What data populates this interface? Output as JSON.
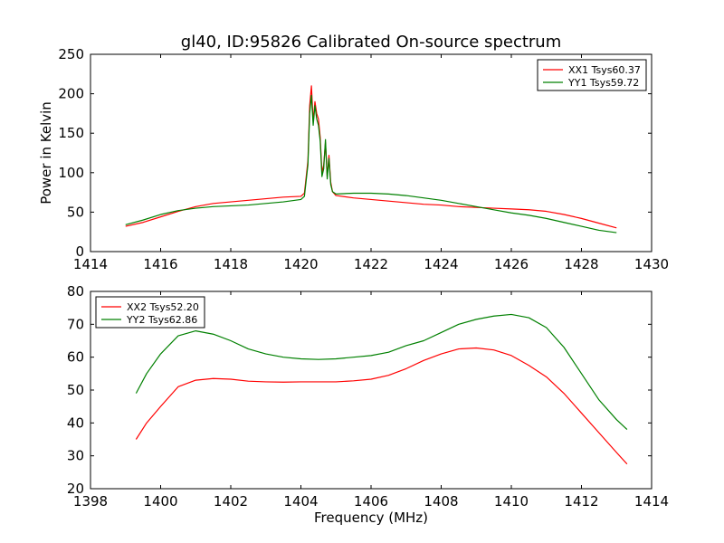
{
  "chart_data": [
    {
      "type": "line",
      "title": "gl40, ID:95826 Calibrated On-source spectrum",
      "xlabel": "",
      "ylabel": "Power in Kelvin",
      "xlim": [
        1414,
        1430
      ],
      "ylim": [
        0,
        250
      ],
      "xticks": [
        1414,
        1416,
        1418,
        1420,
        1422,
        1424,
        1426,
        1428,
        1430
      ],
      "yticks": [
        0,
        50,
        100,
        150,
        200,
        250
      ],
      "grid": false,
      "legend": "top-right",
      "series": [
        {
          "name": "XX1 Tsys60.37",
          "color": "#ff0000",
          "x": [
            1415.0,
            1415.5,
            1416.0,
            1416.5,
            1417.0,
            1417.5,
            1418.0,
            1418.5,
            1419.0,
            1419.5,
            1420.0,
            1420.1,
            1420.2,
            1420.25,
            1420.3,
            1420.35,
            1420.4,
            1420.45,
            1420.5,
            1420.55,
            1420.6,
            1420.65,
            1420.7,
            1420.75,
            1420.8,
            1420.85,
            1420.9,
            1421.0,
            1421.5,
            1422.0,
            1422.5,
            1423.0,
            1423.5,
            1424.0,
            1424.5,
            1425.0,
            1425.5,
            1426.0,
            1426.5,
            1427.0,
            1427.5,
            1428.0,
            1428.5,
            1429.0
          ],
          "y": [
            32,
            37,
            44,
            51,
            57,
            61,
            63,
            65,
            67,
            69,
            70,
            74,
            115,
            185,
            210,
            165,
            190,
            175,
            168,
            145,
            100,
            110,
            138,
            95,
            122,
            88,
            76,
            71,
            68,
            66,
            64,
            62,
            60,
            59,
            57,
            56,
            55,
            54,
            53,
            51,
            47,
            42,
            36,
            30
          ]
        },
        {
          "name": "YY1 Tsys59.72",
          "color": "#008000",
          "x": [
            1415.0,
            1415.5,
            1416.0,
            1416.5,
            1417.0,
            1417.5,
            1418.0,
            1418.5,
            1419.0,
            1419.5,
            1420.0,
            1420.1,
            1420.2,
            1420.25,
            1420.3,
            1420.35,
            1420.4,
            1420.45,
            1420.5,
            1420.55,
            1420.6,
            1420.65,
            1420.7,
            1420.75,
            1420.8,
            1420.85,
            1420.9,
            1421.0,
            1421.5,
            1422.0,
            1422.5,
            1423.0,
            1423.5,
            1424.0,
            1424.5,
            1425.0,
            1425.5,
            1426.0,
            1426.5,
            1427.0,
            1427.5,
            1428.0,
            1428.5,
            1429.0
          ],
          "y": [
            34,
            40,
            47,
            52,
            55,
            57,
            58,
            59,
            61,
            63,
            66,
            70,
            110,
            175,
            198,
            160,
            185,
            168,
            160,
            140,
            95,
            105,
            142,
            92,
            118,
            85,
            76,
            73,
            74,
            74,
            73,
            71,
            68,
            65,
            61,
            57,
            53,
            49,
            46,
            42,
            37,
            32,
            27,
            24
          ]
        }
      ]
    },
    {
      "type": "line",
      "title": "",
      "xlabel": "Frequency (MHz)",
      "ylabel": "",
      "xlim": [
        1398,
        1414
      ],
      "ylim": [
        20,
        80
      ],
      "xticks": [
        1398,
        1400,
        1402,
        1404,
        1406,
        1408,
        1410,
        1412,
        1414
      ],
      "yticks": [
        20,
        30,
        40,
        50,
        60,
        70,
        80
      ],
      "grid": false,
      "legend": "top-left",
      "series": [
        {
          "name": "XX2 Tsys52.20",
          "color": "#ff0000",
          "x": [
            1399.3,
            1399.6,
            1400.0,
            1400.5,
            1401.0,
            1401.5,
            1402.0,
            1402.5,
            1403.0,
            1403.5,
            1404.0,
            1404.5,
            1405.0,
            1405.5,
            1406.0,
            1406.5,
            1407.0,
            1407.5,
            1408.0,
            1408.5,
            1409.0,
            1409.5,
            1410.0,
            1410.5,
            1411.0,
            1411.5,
            1412.0,
            1412.5,
            1413.0,
            1413.3
          ],
          "y": [
            35,
            40,
            45,
            51,
            53,
            53.5,
            53.3,
            52.7,
            52.5,
            52.4,
            52.5,
            52.5,
            52.5,
            52.8,
            53.3,
            54.5,
            56.5,
            59,
            61,
            62.5,
            62.8,
            62.2,
            60.5,
            57.5,
            54,
            49,
            43,
            37,
            31,
            27.5
          ]
        },
        {
          "name": "YY2 Tsys62.86",
          "color": "#008000",
          "x": [
            1399.3,
            1399.6,
            1400.0,
            1400.5,
            1401.0,
            1401.5,
            1402.0,
            1402.5,
            1403.0,
            1403.5,
            1404.0,
            1404.5,
            1405.0,
            1405.5,
            1406.0,
            1406.5,
            1407.0,
            1407.5,
            1408.0,
            1408.5,
            1409.0,
            1409.5,
            1410.0,
            1410.5,
            1411.0,
            1411.5,
            1412.0,
            1412.5,
            1413.0,
            1413.3
          ],
          "y": [
            49,
            55,
            61,
            66.5,
            68,
            67,
            65,
            62.5,
            61,
            60,
            59.5,
            59.3,
            59.5,
            60,
            60.5,
            61.5,
            63.5,
            65,
            67.5,
            70,
            71.5,
            72.5,
            73,
            72,
            69,
            63,
            55,
            47,
            41,
            38
          ]
        }
      ]
    }
  ]
}
